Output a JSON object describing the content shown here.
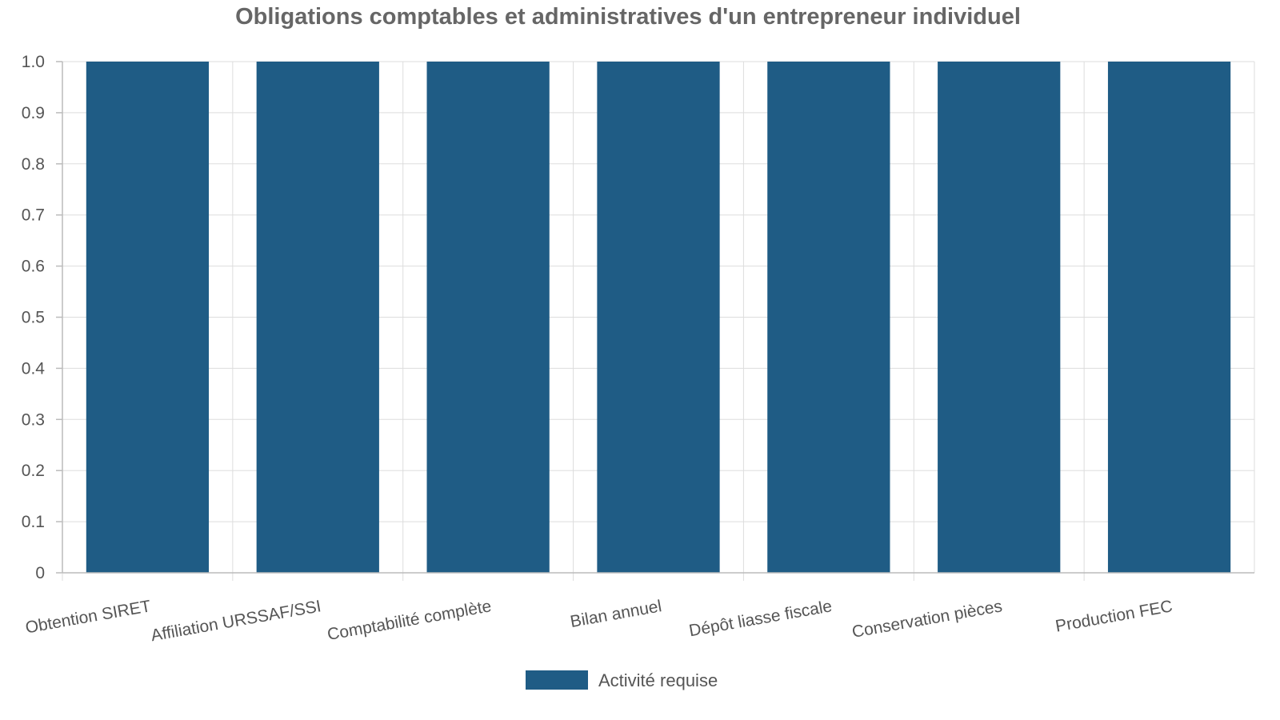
{
  "chart_data": {
    "type": "bar",
    "title": "Obligations comptables et administratives d'un entrepreneur individuel",
    "categories": [
      "Obtention SIRET",
      "Affiliation URSSAF/SSI",
      "Comptabilité complète",
      "Bilan annuel",
      "Dépôt liasse fiscale",
      "Conservation pièces",
      "Production FEC"
    ],
    "series": [
      {
        "name": "Activité requise",
        "values": [
          1,
          1,
          1,
          1,
          1,
          1,
          1
        ],
        "color": "#1f5c85"
      }
    ],
    "xlabel": "",
    "ylabel": "",
    "ylim": [
      0,
      1
    ],
    "yticks": [
      "0",
      "0.1",
      "0.2",
      "0.3",
      "0.4",
      "0.5",
      "0.6",
      "0.7",
      "0.8",
      "0.9",
      "1.0"
    ],
    "grid": true,
    "legend_position": "bottom"
  }
}
